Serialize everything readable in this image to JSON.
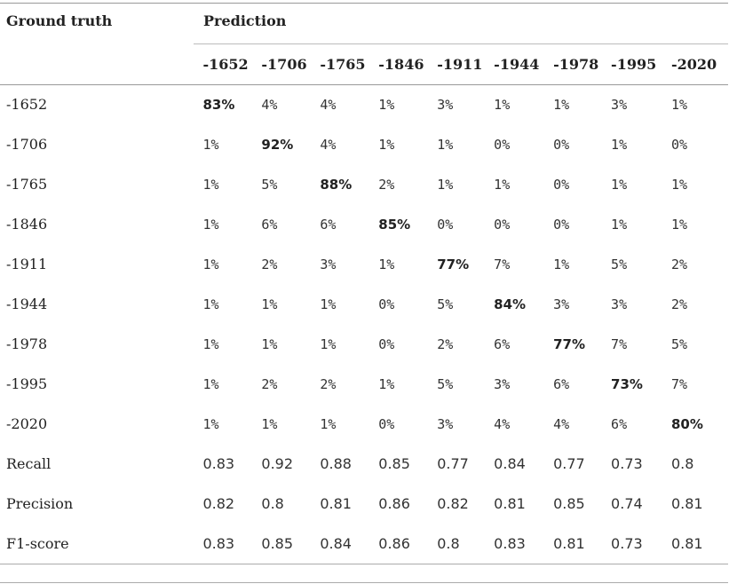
{
  "headers": {
    "ground_truth": "Ground truth",
    "prediction": "Prediction"
  },
  "columns": [
    "-1652",
    "-1706",
    "-1765",
    "-1846",
    "-1911",
    "-1944",
    "-1978",
    "-1995",
    "-2020"
  ],
  "rows": [
    {
      "label": "-1652",
      "cells": [
        "83%",
        "4%",
        "4%",
        "1%",
        "3%",
        "1%",
        "1%",
        "3%",
        "1%"
      ]
    },
    {
      "label": "-1706",
      "cells": [
        "1%",
        "92%",
        "4%",
        "1%",
        "1%",
        "0%",
        "0%",
        "1%",
        "0%"
      ]
    },
    {
      "label": "-1765",
      "cells": [
        "1%",
        "5%",
        "88%",
        "2%",
        "1%",
        "1%",
        "0%",
        "1%",
        "1%"
      ]
    },
    {
      "label": "-1846",
      "cells": [
        "1%",
        "6%",
        "6%",
        "85%",
        "0%",
        "0%",
        "0%",
        "1%",
        "1%"
      ]
    },
    {
      "label": "-1911",
      "cells": [
        "1%",
        "2%",
        "3%",
        "1%",
        "77%",
        "7%",
        "1%",
        "5%",
        "2%"
      ]
    },
    {
      "label": "-1944",
      "cells": [
        "1%",
        "1%",
        "1%",
        "0%",
        "5%",
        "84%",
        "3%",
        "3%",
        "2%"
      ]
    },
    {
      "label": "-1978",
      "cells": [
        "1%",
        "1%",
        "1%",
        "0%",
        "2%",
        "6%",
        "77%",
        "7%",
        "5%"
      ]
    },
    {
      "label": "-1995",
      "cells": [
        "1%",
        "2%",
        "2%",
        "1%",
        "5%",
        "3%",
        "6%",
        "73%",
        "7%"
      ]
    },
    {
      "label": "-2020",
      "cells": [
        "1%",
        "1%",
        "1%",
        "0%",
        "3%",
        "4%",
        "4%",
        "6%",
        "80%"
      ]
    }
  ],
  "metrics": [
    {
      "label": "Recall",
      "cells": [
        "0.83",
        "0.92",
        "0.88",
        "0.85",
        "0.77",
        "0.84",
        "0.77",
        "0.73",
        "0.8"
      ]
    },
    {
      "label": "Precision",
      "cells": [
        "0.82",
        "0.8",
        "0.81",
        "0.86",
        "0.82",
        "0.81",
        "0.85",
        "0.74",
        "0.81"
      ]
    },
    {
      "label": "F1-score",
      "cells": [
        "0.83",
        "0.85",
        "0.84",
        "0.86",
        "0.8",
        "0.83",
        "0.81",
        "0.73",
        "0.81"
      ]
    }
  ]
}
